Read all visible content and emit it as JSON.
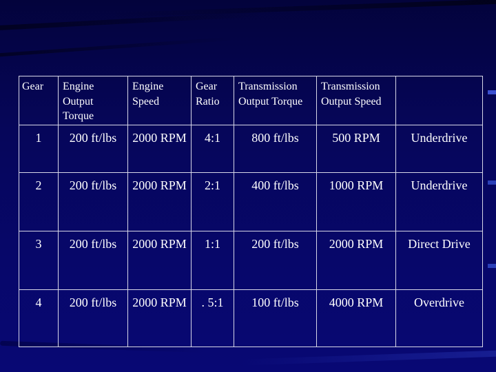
{
  "headers": [
    "Gear",
    "Engine Output Torque",
    "Engine Speed",
    "Gear Ratio",
    "Transmission Output Torque",
    "Transmission Output Speed",
    ""
  ],
  "rows": [
    [
      "1",
      "200 ft/lbs",
      "2000 RPM",
      "4:1",
      "800 ft/lbs",
      "500 RPM",
      "Underdrive"
    ],
    [
      "2",
      "200 ft/lbs",
      "2000 RPM",
      "2:1",
      "400 ft/lbs",
      "1000 RPM",
      "Underdrive"
    ],
    [
      "3",
      "200 ft/lbs",
      "2000 RPM",
      "1:1",
      "200 ft/lbs",
      "2000 RPM",
      "Direct Drive"
    ],
    [
      "4",
      "200 ft/lbs",
      "2000 RPM",
      ". 5:1",
      "100 ft/lbs",
      "4000 RPM",
      "Overdrive"
    ]
  ],
  "colors": {
    "background": "#06065e",
    "text": "#ffffff",
    "grid": "#d8d8e8"
  }
}
